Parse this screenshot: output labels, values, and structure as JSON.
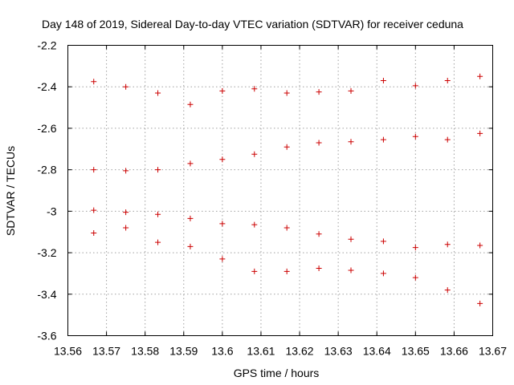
{
  "chart_data": {
    "type": "scatter",
    "title": "Day 148 of 2019, Sidereal Day-to-day VTEC variation (SDTVAR) for receiver ceduna",
    "xlabel": "GPS time / hours",
    "ylabel": "SDTVAR / TECUs",
    "xlim": [
      13.56,
      13.67
    ],
    "ylim": [
      -3.6,
      -2.2
    ],
    "xticks": [
      13.56,
      13.57,
      13.58,
      13.59,
      13.6,
      13.61,
      13.62,
      13.63,
      13.64,
      13.65,
      13.66,
      13.67
    ],
    "xtick_labels": [
      "13.56",
      "13.57",
      "13.58",
      "13.59",
      "13.6",
      "13.61",
      "13.62",
      "13.63",
      "13.64",
      "13.65",
      "13.66",
      "13.67"
    ],
    "yticks": [
      -2.2,
      -2.4,
      -2.6,
      -2.8,
      -3.0,
      -3.2,
      -3.4,
      -3.6
    ],
    "ytick_labels": [
      "-2.2",
      "-2.4",
      "-2.6",
      "-2.8",
      "-3",
      "-3.2",
      "-3.4",
      "-3.6"
    ],
    "grid": true,
    "marker_color": "#cc0000",
    "x": [
      13.5667,
      13.575,
      13.5833,
      13.5917,
      13.6,
      13.6083,
      13.6167,
      13.625,
      13.6333,
      13.6417,
      13.65,
      13.6583,
      13.6667
    ],
    "series": [
      {
        "name": "series-1",
        "values": [
          -2.375,
          -2.4,
          -2.43,
          -2.485,
          -2.42,
          -2.41,
          -2.43,
          -2.425,
          -2.42,
          -2.37,
          -2.395,
          -2.37,
          -2.35
        ]
      },
      {
        "name": "series-2",
        "values": [
          -2.8,
          -2.805,
          -2.8,
          -2.77,
          -2.75,
          -2.725,
          -2.69,
          -2.67,
          -2.665,
          -2.655,
          -2.64,
          -2.655,
          -2.625
        ]
      },
      {
        "name": "series-3",
        "values": [
          -2.995,
          -3.005,
          -3.015,
          -3.035,
          -3.06,
          -3.065,
          -3.08,
          -3.11,
          -3.135,
          -3.145,
          -3.175,
          -3.16,
          -3.165
        ]
      },
      {
        "name": "series-4",
        "values": [
          -3.105,
          -3.08,
          -3.15,
          -3.17,
          -3.23,
          -3.29,
          -3.29,
          -3.275,
          -3.285,
          -3.3,
          -3.32,
          -3.38,
          -3.445
        ]
      }
    ]
  }
}
